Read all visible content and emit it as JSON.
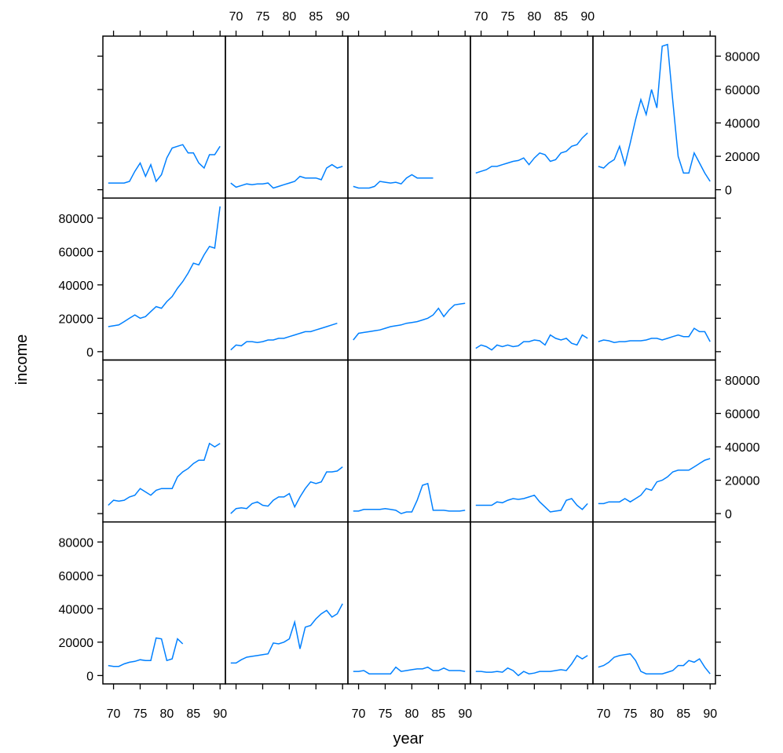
{
  "chart_data": {
    "type": "line",
    "layout": {
      "columns": 5,
      "rows": 4
    },
    "xlabel": "year",
    "ylabel": "income",
    "xlim": [
      68,
      91
    ],
    "ylim": [
      -5000,
      92000
    ],
    "x_ticks": [
      70,
      75,
      80,
      85,
      90
    ],
    "x_tick_labels": [
      "70",
      "75",
      "80",
      "85",
      "90"
    ],
    "y_ticks": [
      0,
      20000,
      40000,
      60000,
      80000
    ],
    "y_tick_labels": [
      "0",
      "20000",
      "40000",
      "60000",
      "80000"
    ],
    "line_color": "#0080ff",
    "panels": [
      {
        "row": 1,
        "col": 1,
        "x": [
          69,
          70,
          71,
          72,
          73,
          74,
          75,
          76,
          77,
          78,
          79,
          80,
          81,
          82,
          83,
          84,
          85,
          86,
          87,
          88,
          89,
          90
        ],
        "y": [
          4000,
          4000,
          4000,
          4000,
          5000,
          11000,
          16000,
          8000,
          15000,
          5000,
          9000,
          19000,
          25000,
          26000,
          27000,
          22000,
          22000,
          16000,
          13000,
          21000,
          21000,
          26000
        ]
      },
      {
        "row": 1,
        "col": 2,
        "x": [
          69,
          70,
          71,
          72,
          73,
          74,
          75,
          76,
          77,
          78,
          79,
          80,
          81,
          82,
          83,
          84,
          85,
          86,
          87,
          88,
          89,
          90
        ],
        "y": [
          4000,
          1500,
          2500,
          3500,
          3000,
          3500,
          3500,
          4000,
          1000,
          2000,
          3000,
          4000,
          5000,
          8000,
          7000,
          7000,
          7000,
          6000,
          13000,
          15000,
          13000,
          14000
        ]
      },
      {
        "row": 1,
        "col": 3,
        "x": [
          69,
          70,
          71,
          72,
          73,
          74,
          75,
          76,
          77,
          78,
          79,
          80,
          81,
          82,
          83,
          84
        ],
        "y": [
          2000,
          1000,
          1000,
          1000,
          2000,
          5000,
          4500,
          4000,
          4500,
          3500,
          7000,
          9000,
          7000,
          7000,
          7000,
          7000
        ]
      },
      {
        "row": 1,
        "col": 4,
        "x": [
          69,
          70,
          71,
          72,
          73,
          74,
          75,
          76,
          77,
          78,
          79,
          80,
          81,
          82,
          83,
          84,
          85,
          86,
          87,
          88,
          89,
          90
        ],
        "y": [
          10000,
          11000,
          12000,
          14000,
          14000,
          15000,
          16000,
          17000,
          17500,
          19000,
          15000,
          19000,
          22000,
          21000,
          17000,
          18000,
          22000,
          23000,
          26000,
          27000,
          31000,
          34000
        ]
      },
      {
        "row": 1,
        "col": 5,
        "x": [
          69,
          70,
          71,
          72,
          73,
          74,
          75,
          76,
          77,
          78,
          79,
          80,
          81,
          82,
          83,
          84,
          85,
          86,
          87,
          88,
          89,
          90
        ],
        "y": [
          14000,
          13000,
          16000,
          18000,
          26000,
          15000,
          28000,
          42000,
          54000,
          45000,
          60000,
          49000,
          86000,
          87000,
          53000,
          20000,
          10000,
          10000,
          22000,
          16000,
          10000,
          5000
        ]
      },
      {
        "row": 2,
        "col": 1,
        "x": [
          69,
          70,
          71,
          72,
          73,
          74,
          75,
          76,
          77,
          78,
          79,
          80,
          81,
          82,
          83,
          84,
          85,
          86,
          87,
          88,
          89,
          90
        ],
        "y": [
          15000,
          15500,
          16000,
          18000,
          20000,
          22000,
          20000,
          21000,
          24000,
          27000,
          26000,
          30000,
          33000,
          38000,
          42000,
          47000,
          53000,
          52000,
          58000,
          63000,
          62000,
          87000
        ]
      },
      {
        "row": 2,
        "col": 2,
        "x": [
          69,
          70,
          71,
          72,
          73,
          74,
          75,
          76,
          77,
          78,
          79,
          80,
          81,
          82,
          83,
          84,
          85,
          86,
          87,
          88,
          89
        ],
        "y": [
          1000,
          4000,
          3500,
          6000,
          6000,
          5500,
          6000,
          7000,
          7000,
          8000,
          8000,
          9000,
          10000,
          11000,
          12000,
          12000,
          13000,
          14000,
          15000,
          16000,
          17000
        ]
      },
      {
        "row": 2,
        "col": 3,
        "x": [
          69,
          70,
          71,
          72,
          73,
          74,
          75,
          76,
          77,
          78,
          79,
          80,
          81,
          82,
          83,
          84,
          85,
          86,
          87,
          88,
          89,
          90
        ],
        "y": [
          7000,
          11000,
          11500,
          12000,
          12500,
          13000,
          14000,
          15000,
          15500,
          16000,
          17000,
          17500,
          18000,
          19000,
          20000,
          22000,
          26000,
          21000,
          25000,
          28000,
          28500,
          29000
        ]
      },
      {
        "row": 2,
        "col": 4,
        "x": [
          69,
          70,
          71,
          72,
          73,
          74,
          75,
          76,
          77,
          78,
          79,
          80,
          81,
          82,
          83,
          84,
          85,
          86,
          87,
          88,
          89,
          90
        ],
        "y": [
          2000,
          4000,
          3000,
          1000,
          4000,
          3000,
          4000,
          3000,
          3500,
          6000,
          6000,
          7000,
          6500,
          4000,
          10000,
          8000,
          7000,
          8000,
          5000,
          4000,
          10000,
          8000
        ]
      },
      {
        "row": 2,
        "col": 5,
        "x": [
          69,
          70,
          71,
          72,
          73,
          74,
          75,
          76,
          77,
          78,
          79,
          80,
          81,
          82,
          83,
          84,
          85,
          86,
          87,
          88,
          89,
          90
        ],
        "y": [
          6000,
          7000,
          6500,
          5500,
          6000,
          6000,
          6500,
          6500,
          6500,
          7000,
          8000,
          8000,
          7000,
          8000,
          9000,
          10000,
          9000,
          9000,
          14000,
          12000,
          12000,
          6000
        ]
      },
      {
        "row": 3,
        "col": 1,
        "x": [
          69,
          70,
          71,
          72,
          73,
          74,
          75,
          76,
          77,
          78,
          79,
          80,
          81,
          82,
          83,
          84,
          85,
          86,
          87,
          88,
          89,
          90
        ],
        "y": [
          5000,
          8000,
          7500,
          8000,
          10000,
          11000,
          15000,
          13000,
          11000,
          14000,
          15000,
          15000,
          15000,
          22000,
          25000,
          27000,
          30000,
          32000,
          32000,
          42000,
          40000,
          42000
        ]
      },
      {
        "row": 3,
        "col": 2,
        "x": [
          69,
          70,
          71,
          72,
          73,
          74,
          75,
          76,
          77,
          78,
          79,
          80,
          81,
          82,
          83,
          84,
          85,
          86,
          87,
          88,
          89,
          90
        ],
        "y": [
          0,
          3000,
          3500,
          3000,
          6000,
          7000,
          5000,
          4500,
          8000,
          10000,
          10000,
          12000,
          4000,
          10000,
          15000,
          19000,
          18000,
          19000,
          25000,
          25000,
          25500,
          28000
        ]
      },
      {
        "row": 3,
        "col": 3,
        "x": [
          69,
          70,
          71,
          72,
          73,
          74,
          75,
          76,
          77,
          78,
          79,
          80,
          81,
          82,
          83,
          84,
          85,
          86,
          87,
          88,
          89,
          90
        ],
        "y": [
          1500,
          1500,
          2500,
          2500,
          2500,
          2500,
          3000,
          2500,
          2000,
          0,
          1000,
          1000,
          8000,
          17000,
          18000,
          2000,
          2000,
          2000,
          1500,
          1500,
          1500,
          2000
        ]
      },
      {
        "row": 3,
        "col": 4,
        "x": [
          69,
          70,
          71,
          72,
          73,
          74,
          75,
          76,
          77,
          78,
          79,
          80,
          81,
          82,
          83,
          84,
          85,
          86,
          87,
          88,
          89,
          90
        ],
        "y": [
          5000,
          5000,
          5000,
          5000,
          7000,
          6500,
          8000,
          9000,
          8500,
          9000,
          10000,
          11000,
          7000,
          4000,
          1000,
          1500,
          2000,
          8000,
          9000,
          5000,
          2500,
          6000
        ]
      },
      {
        "row": 3,
        "col": 5,
        "x": [
          69,
          70,
          71,
          72,
          73,
          74,
          75,
          76,
          77,
          78,
          79,
          80,
          81,
          82,
          83,
          84,
          85,
          86,
          87,
          88,
          89,
          90
        ],
        "y": [
          6000,
          6000,
          7000,
          7000,
          7000,
          9000,
          7000,
          9000,
          11000,
          15000,
          14000,
          19000,
          20000,
          22000,
          25000,
          26000,
          26000,
          26000,
          28000,
          30000,
          32000,
          33000
        ]
      },
      {
        "row": 4,
        "col": 1,
        "x": [
          69,
          70,
          71,
          72,
          73,
          74,
          75,
          76,
          77,
          78,
          79,
          80,
          81,
          82,
          83
        ],
        "y": [
          6000,
          5500,
          5500,
          7000,
          8000,
          8500,
          9500,
          9000,
          9000,
          22500,
          22000,
          9000,
          10000,
          22000,
          19000
        ]
      },
      {
        "row": 4,
        "col": 2,
        "x": [
          69,
          70,
          71,
          72,
          73,
          74,
          75,
          76,
          77,
          78,
          79,
          80,
          81,
          82,
          83,
          84,
          85,
          86,
          87,
          88,
          89,
          90
        ],
        "y": [
          7500,
          7500,
          9500,
          11000,
          11500,
          12000,
          12500,
          13000,
          19500,
          19000,
          20000,
          22000,
          32000,
          16000,
          29000,
          30000,
          34000,
          37000,
          39000,
          35000,
          37000,
          43000
        ]
      },
      {
        "row": 4,
        "col": 3,
        "x": [
          69,
          70,
          71,
          72,
          73,
          74,
          75,
          76,
          77,
          78,
          79,
          80,
          81,
          82,
          83,
          84,
          85,
          86,
          87,
          88,
          89,
          90
        ],
        "y": [
          2500,
          2500,
          3000,
          1000,
          1000,
          1000,
          1000,
          1000,
          5000,
          2500,
          3000,
          3500,
          4000,
          4000,
          5000,
          3000,
          3000,
          4500,
          3000,
          3000,
          3000,
          2500
        ]
      },
      {
        "row": 4,
        "col": 4,
        "x": [
          69,
          70,
          71,
          72,
          73,
          74,
          75,
          76,
          77,
          78,
          79,
          80,
          81,
          82,
          83,
          84,
          85,
          86,
          87,
          88,
          89,
          90
        ],
        "y": [
          2500,
          2500,
          2000,
          2000,
          2500,
          2000,
          4500,
          3000,
          0,
          2500,
          1000,
          1500,
          2500,
          2500,
          2500,
          3000,
          3500,
          3000,
          7000,
          12000,
          10000,
          12000
        ]
      },
      {
        "row": 4,
        "col": 5,
        "x": [
          69,
          70,
          71,
          72,
          73,
          74,
          75,
          76,
          77,
          78,
          79,
          80,
          81,
          82,
          83,
          84,
          85,
          86,
          87,
          88,
          89,
          90
        ],
        "y": [
          5000,
          6000,
          8000,
          11000,
          12000,
          12500,
          13000,
          9000,
          2500,
          1000,
          1000,
          1000,
          1000,
          2000,
          3000,
          6000,
          6000,
          9000,
          8000,
          10000,
          5000,
          1000
        ]
      }
    ]
  }
}
